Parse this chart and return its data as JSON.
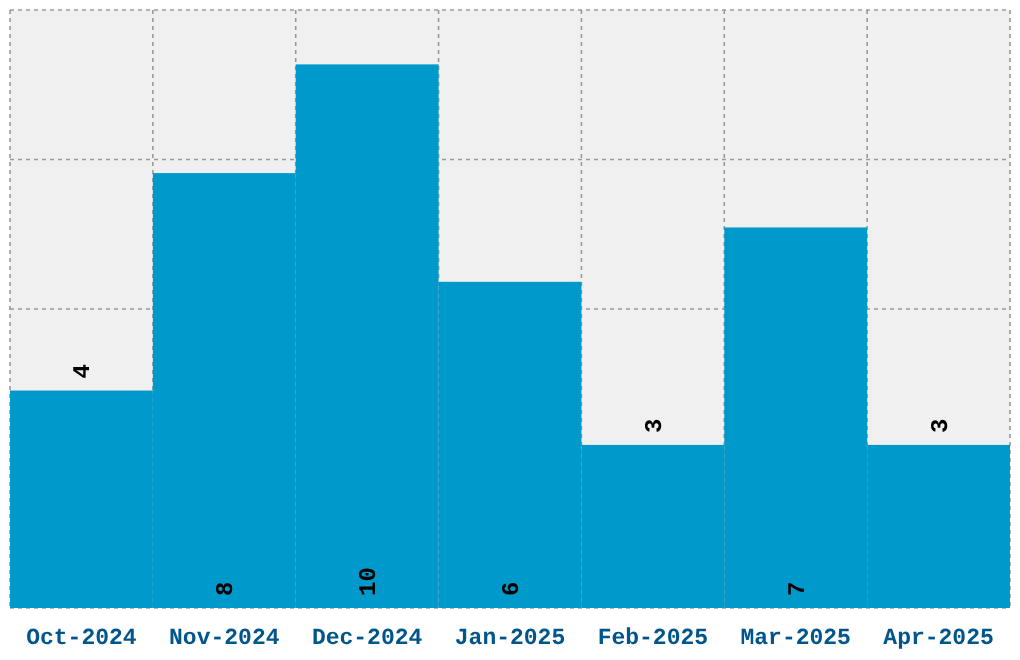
{
  "chart_data": {
    "type": "bar",
    "categories": [
      "Oct-2024",
      "Nov-2024",
      "Dec-2024",
      "Jan-2025",
      "Feb-2025",
      "Mar-2025",
      "Apr-2025"
    ],
    "values": [
      4,
      8,
      10,
      6,
      3,
      7,
      3
    ],
    "color": "#0099cc",
    "ylim": [
      0,
      11
    ],
    "grid": true,
    "tick_labels": "x",
    "data_labels": true
  }
}
